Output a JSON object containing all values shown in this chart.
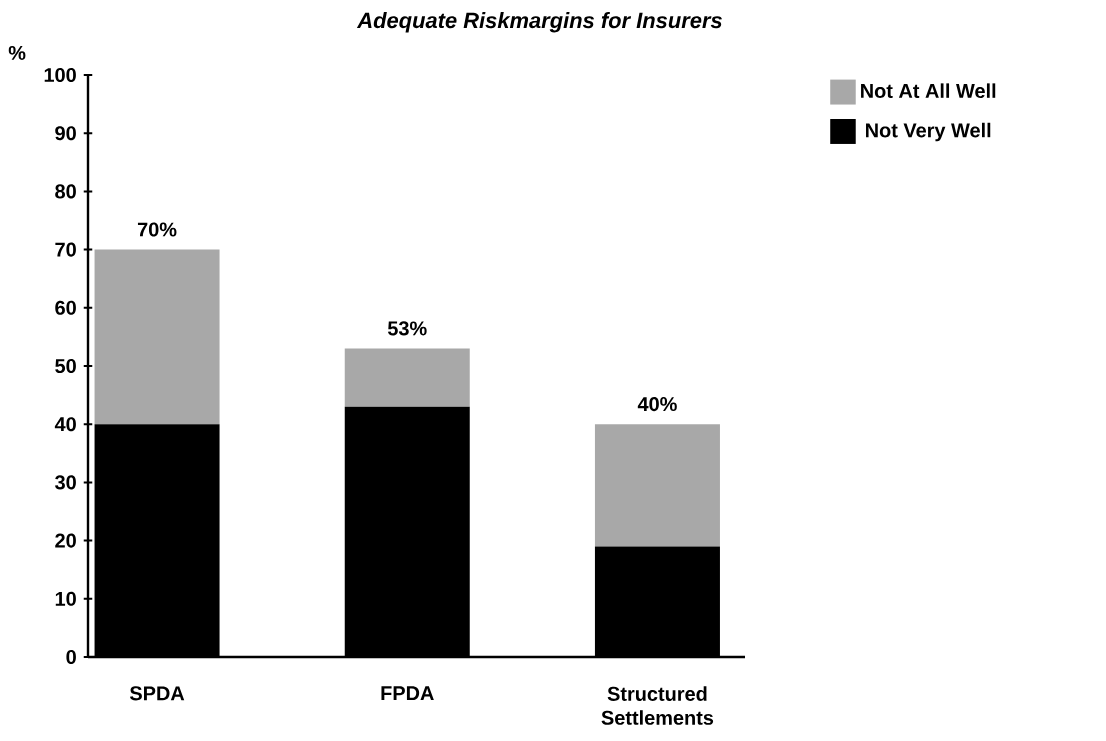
{
  "chart_data": {
    "type": "bar",
    "title": "Adequate Riskmargins for Insurers",
    "ylabel": "%",
    "categories": [
      "SPDA",
      "FPDA",
      "Structured Settlements"
    ],
    "stacked": true,
    "series": [
      {
        "name": "Not Very Well",
        "color": "#000000",
        "values": [
          40,
          43,
          19
        ]
      },
      {
        "name": "Not At All Well",
        "color": "#a8a8a8",
        "values": [
          30,
          10,
          21
        ]
      }
    ],
    "totals": [
      "70%",
      "53%",
      "40%"
    ],
    "ylim": [
      0,
      100
    ],
    "yticks": [
      0,
      10,
      20,
      30,
      40,
      50,
      60,
      70,
      80,
      90,
      100
    ],
    "grid": false,
    "legend": "top right"
  }
}
